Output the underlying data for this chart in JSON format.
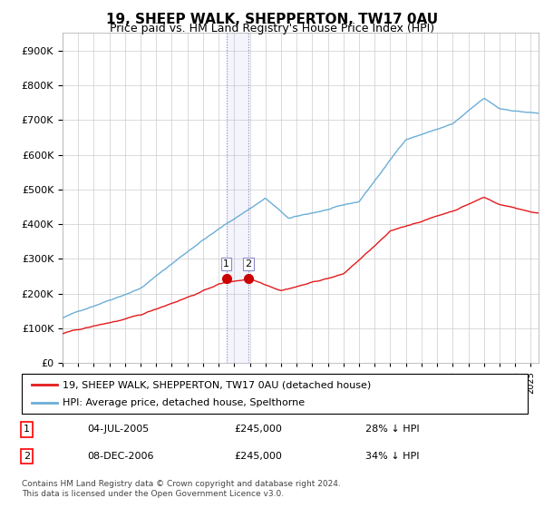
{
  "title": "19, SHEEP WALK, SHEPPERTON, TW17 0AU",
  "subtitle": "Price paid vs. HM Land Registry's House Price Index (HPI)",
  "ylabel_ticks": [
    "£0",
    "£100K",
    "£200K",
    "£300K",
    "£400K",
    "£500K",
    "£600K",
    "£700K",
    "£800K",
    "£900K"
  ],
  "ylim": [
    0,
    950000
  ],
  "yticks": [
    0,
    100000,
    200000,
    300000,
    400000,
    500000,
    600000,
    700000,
    800000,
    900000
  ],
  "hpi_color": "#6baed6",
  "price_color": "#e31a1c",
  "marker_color": "#cc0000",
  "vline_color": "#aaaadd",
  "transaction1": {
    "date_num": 2005.5,
    "price": 245000,
    "label": "1",
    "date_str": "04-JUL-2005",
    "pct": "28% ↓ HPI"
  },
  "transaction2": {
    "date_num": 2006.92,
    "price": 245000,
    "label": "2",
    "date_str": "08-DEC-2006",
    "pct": "34% ↓ HPI"
  },
  "legend_red": "19, SHEEP WALK, SHEPPERTON, TW17 0AU (detached house)",
  "legend_blue": "HPI: Average price, detached house, Spelthorne",
  "footnote": "Contains HM Land Registry data © Crown copyright and database right 2024.\nThis data is licensed under the Open Government Licence v3.0.",
  "xstart": 1995.0,
  "xend": 2025.5
}
